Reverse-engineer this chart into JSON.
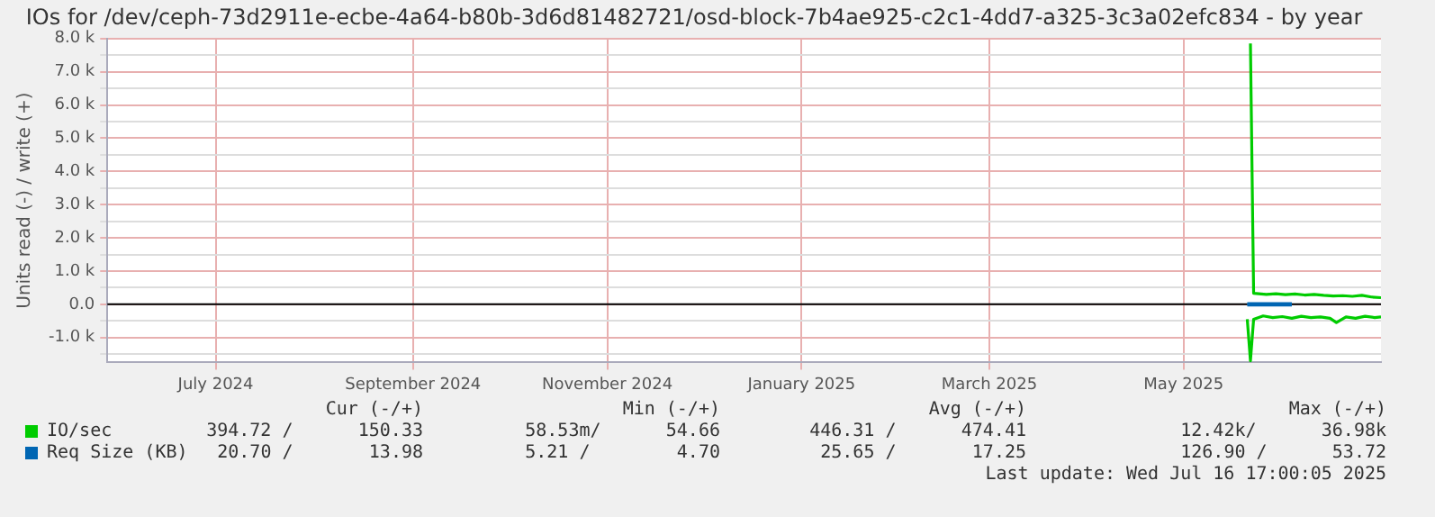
{
  "chart_data": {
    "type": "line",
    "title": "IOs for /dev/ceph-73d2911e-ecbe-4a64-b80b-3d6d81482721/osd-block-7b4ae925-c2c1-4dd7-a325-3c3a02efc834 - by year",
    "ylabel": "Units read (-) / write (+)",
    "xlim": [
      "2024-06-11",
      "2025-07-16"
    ],
    "xticks": [
      {
        "value": "2024-07-15",
        "label": "July 2024"
      },
      {
        "value": "2024-09-15",
        "label": "September 2024"
      },
      {
        "value": "2024-11-15",
        "label": "November 2024"
      },
      {
        "value": "2025-01-15",
        "label": "January 2025"
      },
      {
        "value": "2025-03-15",
        "label": "March 2025"
      },
      {
        "value": "2025-05-15",
        "label": "May 2025"
      }
    ],
    "ylim": [
      -1750,
      8000
    ],
    "yticks": [
      {
        "value": -1500,
        "label": null
      },
      {
        "value": -1000,
        "label": "-1.0 k"
      },
      {
        "value": -500,
        "label": null
      },
      {
        "value": 0,
        "label": "0.0"
      },
      {
        "value": 500,
        "label": null
      },
      {
        "value": 1000,
        "label": "1.0 k"
      },
      {
        "value": 1500,
        "label": null
      },
      {
        "value": 2000,
        "label": "2.0 k"
      },
      {
        "value": 2500,
        "label": null
      },
      {
        "value": 3000,
        "label": "3.0 k"
      },
      {
        "value": 3500,
        "label": null
      },
      {
        "value": 4000,
        "label": "4.0 k"
      },
      {
        "value": 4500,
        "label": null
      },
      {
        "value": 5000,
        "label": "5.0 k"
      },
      {
        "value": 5500,
        "label": null
      },
      {
        "value": 6000,
        "label": "6.0 k"
      },
      {
        "value": 6500,
        "label": null
      },
      {
        "value": 7000,
        "label": "7.0 k"
      },
      {
        "value": 7500,
        "label": null
      },
      {
        "value": 8000,
        "label": "8.0 k"
      }
    ],
    "grid": true,
    "legend": "bottom",
    "marker": "none",
    "ref_lines": [
      {
        "axis": "y",
        "value": 0,
        "color": "#000000"
      }
    ],
    "series": [
      {
        "name": "IO/sec",
        "color": "#00cc00",
        "x": [
          "2025-06-05",
          "2025-06-06",
          "2025-06-10",
          "2025-06-13",
          "2025-06-16",
          "2025-06-19",
          "2025-06-22",
          "2025-06-25",
          "2025-06-28",
          "2025-07-01",
          "2025-07-04",
          "2025-07-07",
          "2025-07-10",
          "2025-07-13",
          "2025-07-16"
        ],
        "values": [
          7850,
          330,
          300,
          320,
          290,
          310,
          280,
          300,
          270,
          250,
          260,
          240,
          270,
          220,
          200
        ]
      },
      {
        "color": "#00cc00",
        "x": [
          "2025-06-04",
          "2025-06-05",
          "2025-06-06",
          "2025-06-09",
          "2025-06-12",
          "2025-06-15",
          "2025-06-18",
          "2025-06-21",
          "2025-06-24",
          "2025-06-27",
          "2025-06-30",
          "2025-07-02",
          "2025-07-05",
          "2025-07-08",
          "2025-07-11",
          "2025-07-14",
          "2025-07-16"
        ],
        "values": [
          -450,
          -1700,
          -450,
          -350,
          -400,
          -370,
          -420,
          -360,
          -400,
          -380,
          -420,
          -550,
          -380,
          -420,
          -360,
          -400,
          -380
        ]
      },
      {
        "name": "Req Size (KB)",
        "color": "#0066b3",
        "x": [
          "2025-06-04",
          "2025-06-18"
        ],
        "values": [
          20,
          20
        ]
      },
      {
        "color": "#0066b3",
        "x": [
          "2025-06-04",
          "2025-06-18"
        ],
        "values": [
          -20,
          -20
        ]
      }
    ],
    "annotations": [
      "Cur (-/+)",
      "Min (-/+)",
      "Avg (-/+)",
      "Max (-/+)",
      "394.72 /      150.33",
      "58.53m/      54.66",
      "446.31 /      474.41",
      "12.42k/      36.98k",
      "20.70 /       13.98",
      "5.21 /        4.70",
      "25.65 /       17.25",
      "126.90 /      53.72",
      "Last update: Wed Jul 16 17:00:05 2025"
    ]
  }
}
